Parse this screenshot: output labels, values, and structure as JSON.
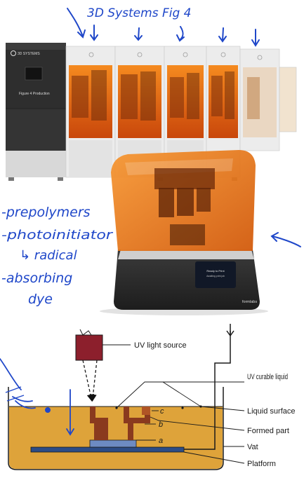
{
  "sketch": {
    "title": "3D Systems Fig 4",
    "notes": [
      "-prepolymers",
      "-photoinitiator",
      "↳ radical",
      "-absorbing",
      "dye"
    ]
  },
  "printer_line": {
    "brand": "3D SYSTEMS",
    "panel_label": "Figure 4 Production"
  },
  "desktop_printer": {
    "brand": "formlabs",
    "screen_line_1": "Ready to Print",
    "screen_line_2": "Awaiting print job"
  },
  "diagram": {
    "uv_source": "UV light source",
    "uv_liquid": "UV curable liquid",
    "liquid_surface": "Liquid surface",
    "formed_part": "Formed part",
    "vat": "Vat",
    "platform": "Platform",
    "layer_labels": [
      "c",
      "b",
      "a"
    ]
  },
  "colors": {
    "ink": "#1f47c9",
    "resin": "#dea33a",
    "part": "#8a3a1e",
    "source": "#8c1f2c",
    "amber": "#e0680e"
  }
}
